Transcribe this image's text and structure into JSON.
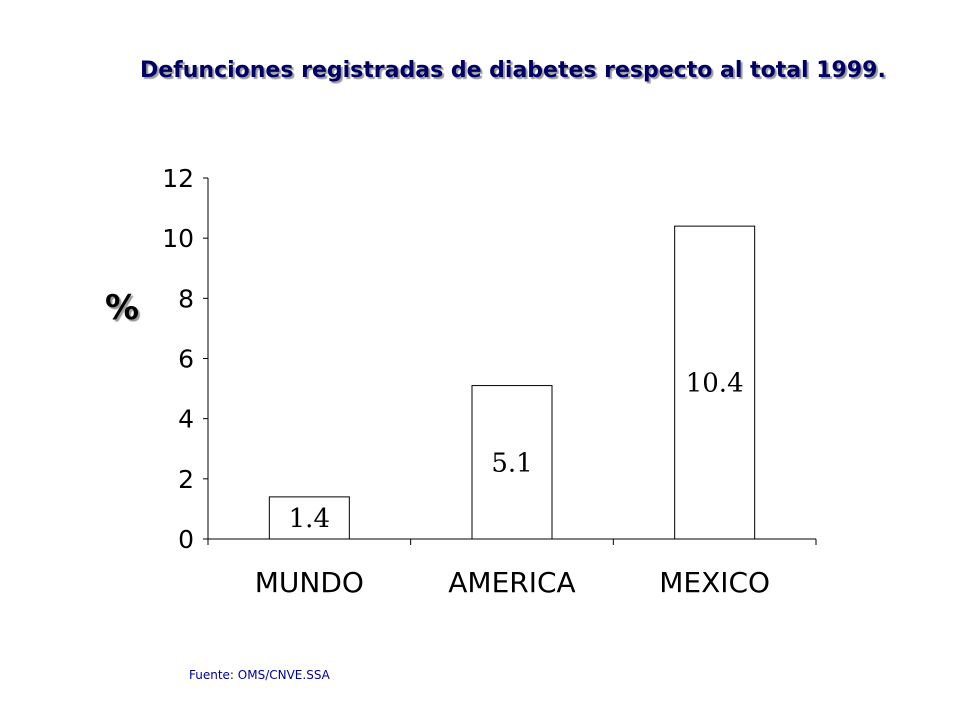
{
  "chart_data": {
    "type": "bar",
    "title": "Defunciones registradas de diabetes respecto al total 1999.",
    "ylabel": "%",
    "categories": [
      "MUNDO",
      "AMERICA",
      "MEXICO"
    ],
    "values": [
      1.4,
      5.1,
      10.4
    ],
    "data_labels": [
      "1.4",
      "5.1",
      "10.4"
    ],
    "ylim": [
      0,
      12
    ],
    "yticks": [
      0,
      2,
      4,
      6,
      8,
      10,
      12
    ],
    "grid": false,
    "legend": "none"
  },
  "source": "Fuente: OMS/CNVE.SSA"
}
